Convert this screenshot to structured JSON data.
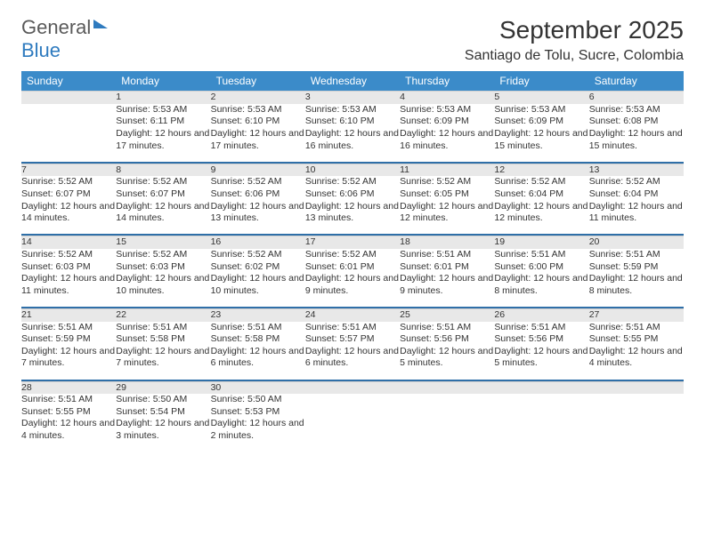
{
  "logo": {
    "line1": "General",
    "line2": "Blue"
  },
  "title": "September 2025",
  "subtitle": "Santiago de Tolu, Sucre, Colombia",
  "colors": {
    "header_bg": "#3b8bc9",
    "header_text": "#ffffff",
    "daynum_bg": "#e8e8e8",
    "separator": "#2f6fa8",
    "body_text": "#333333",
    "logo_gray": "#5a5a5a",
    "logo_blue": "#2f7bbf",
    "page_bg": "#ffffff"
  },
  "layout": {
    "columns": 7,
    "rows": 5,
    "daynum_fontsize": 12,
    "detail_fontsize": 10.5,
    "title_fontsize": 28,
    "subtitle_fontsize": 16
  },
  "weekdays": [
    "Sunday",
    "Monday",
    "Tuesday",
    "Wednesday",
    "Thursday",
    "Friday",
    "Saturday"
  ],
  "weeks": [
    [
      null,
      {
        "n": "1",
        "sr": "Sunrise: 5:53 AM",
        "ss": "Sunset: 6:11 PM",
        "dl": "Daylight: 12 hours and 17 minutes."
      },
      {
        "n": "2",
        "sr": "Sunrise: 5:53 AM",
        "ss": "Sunset: 6:10 PM",
        "dl": "Daylight: 12 hours and 17 minutes."
      },
      {
        "n": "3",
        "sr": "Sunrise: 5:53 AM",
        "ss": "Sunset: 6:10 PM",
        "dl": "Daylight: 12 hours and 16 minutes."
      },
      {
        "n": "4",
        "sr": "Sunrise: 5:53 AM",
        "ss": "Sunset: 6:09 PM",
        "dl": "Daylight: 12 hours and 16 minutes."
      },
      {
        "n": "5",
        "sr": "Sunrise: 5:53 AM",
        "ss": "Sunset: 6:09 PM",
        "dl": "Daylight: 12 hours and 15 minutes."
      },
      {
        "n": "6",
        "sr": "Sunrise: 5:53 AM",
        "ss": "Sunset: 6:08 PM",
        "dl": "Daylight: 12 hours and 15 minutes."
      }
    ],
    [
      {
        "n": "7",
        "sr": "Sunrise: 5:52 AM",
        "ss": "Sunset: 6:07 PM",
        "dl": "Daylight: 12 hours and 14 minutes."
      },
      {
        "n": "8",
        "sr": "Sunrise: 5:52 AM",
        "ss": "Sunset: 6:07 PM",
        "dl": "Daylight: 12 hours and 14 minutes."
      },
      {
        "n": "9",
        "sr": "Sunrise: 5:52 AM",
        "ss": "Sunset: 6:06 PM",
        "dl": "Daylight: 12 hours and 13 minutes."
      },
      {
        "n": "10",
        "sr": "Sunrise: 5:52 AM",
        "ss": "Sunset: 6:06 PM",
        "dl": "Daylight: 12 hours and 13 minutes."
      },
      {
        "n": "11",
        "sr": "Sunrise: 5:52 AM",
        "ss": "Sunset: 6:05 PM",
        "dl": "Daylight: 12 hours and 12 minutes."
      },
      {
        "n": "12",
        "sr": "Sunrise: 5:52 AM",
        "ss": "Sunset: 6:04 PM",
        "dl": "Daylight: 12 hours and 12 minutes."
      },
      {
        "n": "13",
        "sr": "Sunrise: 5:52 AM",
        "ss": "Sunset: 6:04 PM",
        "dl": "Daylight: 12 hours and 11 minutes."
      }
    ],
    [
      {
        "n": "14",
        "sr": "Sunrise: 5:52 AM",
        "ss": "Sunset: 6:03 PM",
        "dl": "Daylight: 12 hours and 11 minutes."
      },
      {
        "n": "15",
        "sr": "Sunrise: 5:52 AM",
        "ss": "Sunset: 6:03 PM",
        "dl": "Daylight: 12 hours and 10 minutes."
      },
      {
        "n": "16",
        "sr": "Sunrise: 5:52 AM",
        "ss": "Sunset: 6:02 PM",
        "dl": "Daylight: 12 hours and 10 minutes."
      },
      {
        "n": "17",
        "sr": "Sunrise: 5:52 AM",
        "ss": "Sunset: 6:01 PM",
        "dl": "Daylight: 12 hours and 9 minutes."
      },
      {
        "n": "18",
        "sr": "Sunrise: 5:51 AM",
        "ss": "Sunset: 6:01 PM",
        "dl": "Daylight: 12 hours and 9 minutes."
      },
      {
        "n": "19",
        "sr": "Sunrise: 5:51 AM",
        "ss": "Sunset: 6:00 PM",
        "dl": "Daylight: 12 hours and 8 minutes."
      },
      {
        "n": "20",
        "sr": "Sunrise: 5:51 AM",
        "ss": "Sunset: 5:59 PM",
        "dl": "Daylight: 12 hours and 8 minutes."
      }
    ],
    [
      {
        "n": "21",
        "sr": "Sunrise: 5:51 AM",
        "ss": "Sunset: 5:59 PM",
        "dl": "Daylight: 12 hours and 7 minutes."
      },
      {
        "n": "22",
        "sr": "Sunrise: 5:51 AM",
        "ss": "Sunset: 5:58 PM",
        "dl": "Daylight: 12 hours and 7 minutes."
      },
      {
        "n": "23",
        "sr": "Sunrise: 5:51 AM",
        "ss": "Sunset: 5:58 PM",
        "dl": "Daylight: 12 hours and 6 minutes."
      },
      {
        "n": "24",
        "sr": "Sunrise: 5:51 AM",
        "ss": "Sunset: 5:57 PM",
        "dl": "Daylight: 12 hours and 6 minutes."
      },
      {
        "n": "25",
        "sr": "Sunrise: 5:51 AM",
        "ss": "Sunset: 5:56 PM",
        "dl": "Daylight: 12 hours and 5 minutes."
      },
      {
        "n": "26",
        "sr": "Sunrise: 5:51 AM",
        "ss": "Sunset: 5:56 PM",
        "dl": "Daylight: 12 hours and 5 minutes."
      },
      {
        "n": "27",
        "sr": "Sunrise: 5:51 AM",
        "ss": "Sunset: 5:55 PM",
        "dl": "Daylight: 12 hours and 4 minutes."
      }
    ],
    [
      {
        "n": "28",
        "sr": "Sunrise: 5:51 AM",
        "ss": "Sunset: 5:55 PM",
        "dl": "Daylight: 12 hours and 4 minutes."
      },
      {
        "n": "29",
        "sr": "Sunrise: 5:50 AM",
        "ss": "Sunset: 5:54 PM",
        "dl": "Daylight: 12 hours and 3 minutes."
      },
      {
        "n": "30",
        "sr": "Sunrise: 5:50 AM",
        "ss": "Sunset: 5:53 PM",
        "dl": "Daylight: 12 hours and 2 minutes."
      },
      null,
      null,
      null,
      null
    ]
  ]
}
